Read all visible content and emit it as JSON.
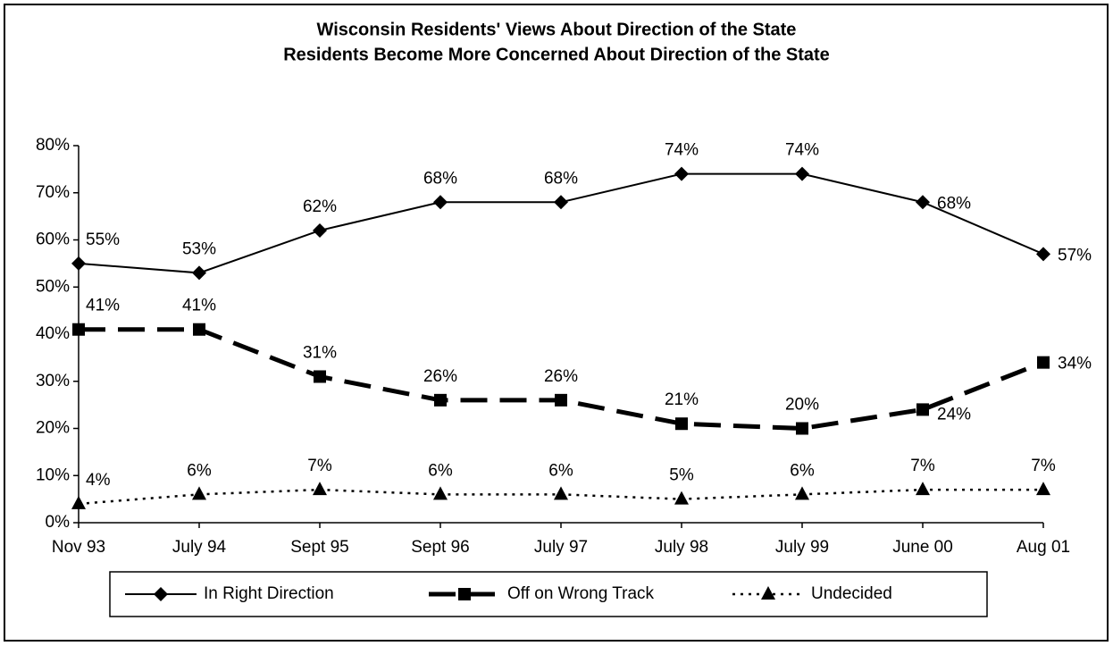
{
  "chart_data": {
    "type": "line",
    "title": "Wisconsin Residents' Views About Direction of the State",
    "subtitle": "Residents Become More Concerned About Direction of the State",
    "categories": [
      "Nov 93",
      "July 94",
      "Sept 95",
      "Sept 96",
      "July 97",
      "July 98",
      "July 99",
      "June 00",
      "Aug 01"
    ],
    "ylim": [
      0,
      80
    ],
    "yticks": [
      {
        "value": 0,
        "label": "0%"
      },
      {
        "value": 10,
        "label": "10%"
      },
      {
        "value": 20,
        "label": "20%"
      },
      {
        "value": 30,
        "label": "30%"
      },
      {
        "value": 40,
        "label": "40%"
      },
      {
        "value": 50,
        "label": "50%"
      },
      {
        "value": 60,
        "label": "60%"
      },
      {
        "value": 70,
        "label": "70%"
      },
      {
        "value": 80,
        "label": "80%"
      }
    ],
    "legend": "bottom",
    "series": [
      {
        "name": "In Right Direction",
        "color": "#000000",
        "marker": "diamond",
        "line": "solid",
        "values": [
          55,
          53,
          62,
          68,
          68,
          74,
          74,
          68,
          57
        ],
        "value_labels": [
          "55%",
          "53%",
          "62%",
          "68%",
          "68%",
          "74%",
          "74%",
          "68%",
          "57%"
        ]
      },
      {
        "name": "Off on Wrong Track",
        "color": "#000000",
        "marker": "square",
        "line": "dashed",
        "values": [
          41,
          41,
          31,
          26,
          26,
          21,
          20,
          24,
          34
        ],
        "value_labels": [
          "41%",
          "41%",
          "31%",
          "26%",
          "26%",
          "21%",
          "20%",
          "24%",
          "34%"
        ]
      },
      {
        "name": "Undecided",
        "color": "#000000",
        "marker": "triangle",
        "line": "dotted",
        "values": [
          4,
          6,
          7,
          6,
          6,
          5,
          6,
          7,
          7
        ],
        "value_labels": [
          "4%",
          "6%",
          "7%",
          "6%",
          "6%",
          "5%",
          "6%",
          "7%",
          "7%"
        ]
      }
    ]
  }
}
